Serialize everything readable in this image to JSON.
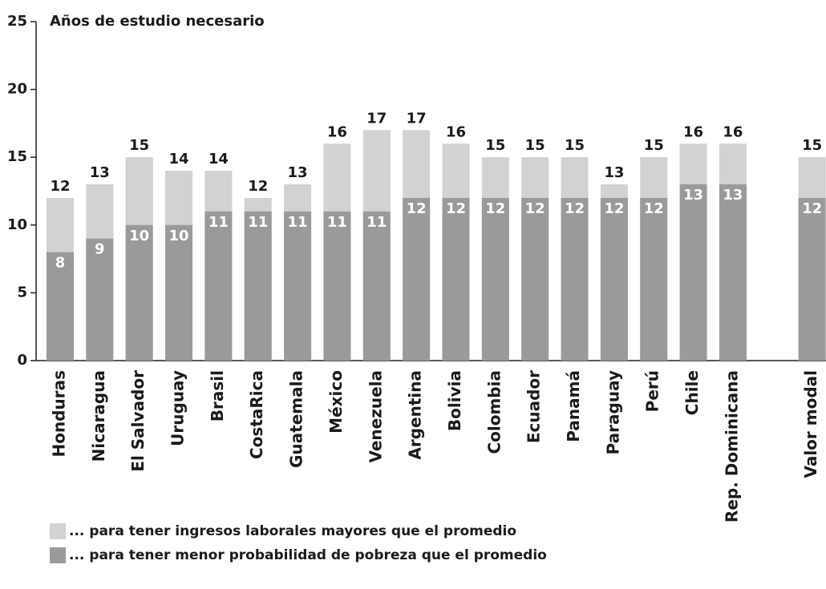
{
  "chart_data": {
    "type": "bar",
    "title": "Años de estudio necesario",
    "categories": [
      "Honduras",
      "Nicaragua",
      "El Salvador",
      "Uruguay",
      "Brasil",
      "CostaRica",
      "Guatemala",
      "México",
      "Venezuela",
      "Argentina",
      "Bolivia",
      "Colombia",
      "Ecuador",
      "Panamá",
      "Paraguay",
      "Perú",
      "Chile",
      "Rep. Dominicana",
      null,
      "Valor modal"
    ],
    "series": [
      {
        "name": "... para tener ingresos laborales mayores que el promedio",
        "color": "#d2d2d2",
        "values": [
          12,
          13,
          15,
          14,
          14,
          12,
          13,
          16,
          17,
          17,
          16,
          15,
          15,
          15,
          13,
          15,
          16,
          16,
          null,
          15
        ]
      },
      {
        "name": "... para tener menor probabilidad de pobreza que el promedio",
        "color": "#9a9a9a",
        "values": [
          8,
          9,
          10,
          10,
          11,
          11,
          11,
          11,
          11,
          12,
          12,
          12,
          12,
          12,
          12,
          12,
          13,
          13,
          null,
          12
        ]
      }
    ],
    "ylim": [
      0,
      25
    ],
    "yticks": [
      0,
      5,
      10,
      15,
      20,
      25
    ]
  }
}
